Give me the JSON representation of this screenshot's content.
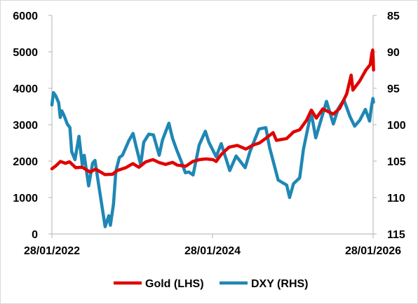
{
  "chart_data": {
    "type": "line",
    "title": "",
    "xlabel": "",
    "ylabel": "",
    "x_start": "2022-01-28",
    "x_end": "2026-01-28",
    "x_ticks": [
      "28/01/2022",
      "28/01/2024",
      "28/01/2026"
    ],
    "y_left": {
      "min": 0,
      "max": 6000,
      "ticks": [
        "0",
        "1000",
        "2000",
        "3000",
        "4000",
        "5000",
        "6000"
      ]
    },
    "y_right": {
      "min": 85,
      "max": 115,
      "inverted": true,
      "ticks": [
        "85",
        "90",
        "95",
        "100",
        "105",
        "110",
        "115"
      ]
    },
    "grid": false,
    "legend_position": "bottom",
    "series": [
      {
        "name": "Gold (LHS)",
        "axis": "left",
        "color": "#e00000",
        "points": [
          [
            "2022-01-28",
            1790
          ],
          [
            "2022-02-15",
            1870
          ],
          [
            "2022-03-08",
            1990
          ],
          [
            "2022-03-31",
            1940
          ],
          [
            "2022-04-18",
            1980
          ],
          [
            "2022-05-16",
            1820
          ],
          [
            "2022-06-15",
            1830
          ],
          [
            "2022-07-21",
            1700
          ],
          [
            "2022-08-15",
            1780
          ],
          [
            "2022-09-26",
            1630
          ],
          [
            "2022-10-31",
            1640
          ],
          [
            "2022-11-21",
            1740
          ],
          [
            "2022-12-30",
            1820
          ],
          [
            "2023-01-31",
            1930
          ],
          [
            "2023-02-28",
            1830
          ],
          [
            "2023-03-31",
            1980
          ],
          [
            "2023-05-03",
            2040
          ],
          [
            "2023-05-31",
            1960
          ],
          [
            "2023-06-29",
            1910
          ],
          [
            "2023-07-31",
            1965
          ],
          [
            "2023-08-21",
            1890
          ],
          [
            "2023-09-29",
            1860
          ],
          [
            "2023-10-31",
            1990
          ],
          [
            "2023-11-30",
            2040
          ],
          [
            "2023-12-29",
            2060
          ],
          [
            "2024-01-31",
            2040
          ],
          [
            "2024-02-14",
            1990
          ],
          [
            "2024-03-08",
            2180
          ],
          [
            "2024-04-12",
            2380
          ],
          [
            "2024-05-20",
            2430
          ],
          [
            "2024-06-28",
            2330
          ],
          [
            "2024-07-31",
            2440
          ],
          [
            "2024-08-30",
            2500
          ],
          [
            "2024-09-30",
            2640
          ],
          [
            "2024-10-30",
            2780
          ],
          [
            "2024-11-14",
            2570
          ],
          [
            "2024-12-31",
            2620
          ],
          [
            "2025-01-31",
            2800
          ],
          [
            "2025-02-28",
            2860
          ],
          [
            "2025-03-31",
            3120
          ],
          [
            "2025-04-22",
            3400
          ],
          [
            "2025-05-15",
            3180
          ],
          [
            "2025-06-13",
            3430
          ],
          [
            "2025-07-31",
            3290
          ],
          [
            "2025-08-29",
            3450
          ],
          [
            "2025-09-30",
            3850
          ],
          [
            "2025-10-20",
            4360
          ],
          [
            "2025-10-28",
            3950
          ],
          [
            "2025-11-28",
            4200
          ],
          [
            "2025-12-26",
            4500
          ],
          [
            "2026-01-15",
            4650
          ],
          [
            "2026-01-22",
            4950
          ],
          [
            "2026-01-26",
            5050
          ],
          [
            "2026-01-28",
            4850
          ],
          [
            "2026-01-30",
            4500
          ]
        ]
      },
      {
        "name": "DXY (RHS)",
        "axis": "right",
        "color": "#1f87b4",
        "points": [
          [
            "2022-01-28",
            97.3
          ],
          [
            "2022-02-04",
            95.6
          ],
          [
            "2022-02-14",
            96.0
          ],
          [
            "2022-02-28",
            97.0
          ],
          [
            "2022-03-07",
            99.0
          ],
          [
            "2022-03-14",
            98.1
          ],
          [
            "2022-03-25",
            98.8
          ],
          [
            "2022-04-08",
            99.9
          ],
          [
            "2022-04-20",
            100.4
          ],
          [
            "2022-04-28",
            103.7
          ],
          [
            "2022-05-13",
            104.8
          ],
          [
            "2022-05-31",
            101.6
          ],
          [
            "2022-06-15",
            105.5
          ],
          [
            "2022-06-24",
            104.2
          ],
          [
            "2022-07-14",
            108.4
          ],
          [
            "2022-08-01",
            105.3
          ],
          [
            "2022-08-12",
            104.9
          ],
          [
            "2022-08-31",
            108.7
          ],
          [
            "2022-09-27",
            114.0
          ],
          [
            "2022-10-14",
            112.5
          ],
          [
            "2022-10-21",
            113.8
          ],
          [
            "2022-11-04",
            110.9
          ],
          [
            "2022-11-15",
            106.4
          ],
          [
            "2022-12-01",
            104.5
          ],
          [
            "2022-12-15",
            104.2
          ],
          [
            "2023-01-13",
            102.2
          ],
          [
            "2023-02-01",
            101.2
          ],
          [
            "2023-02-15",
            103.0
          ],
          [
            "2023-03-08",
            105.5
          ],
          [
            "2023-03-22",
            102.4
          ],
          [
            "2023-04-14",
            101.3
          ],
          [
            "2023-05-05",
            101.4
          ],
          [
            "2023-05-31",
            104.2
          ],
          [
            "2023-06-15",
            102.1
          ],
          [
            "2023-07-14",
            99.8
          ],
          [
            "2023-07-31",
            101.9
          ],
          [
            "2023-08-18",
            103.4
          ],
          [
            "2023-09-08",
            105.0
          ],
          [
            "2023-09-27",
            106.6
          ],
          [
            "2023-10-13",
            106.5
          ],
          [
            "2023-11-01",
            106.9
          ],
          [
            "2023-11-29",
            102.8
          ],
          [
            "2023-12-27",
            100.9
          ],
          [
            "2024-01-12",
            102.4
          ],
          [
            "2024-02-14",
            104.4
          ],
          [
            "2024-03-08",
            102.6
          ],
          [
            "2024-04-16",
            106.3
          ],
          [
            "2024-05-15",
            104.3
          ],
          [
            "2024-06-25",
            105.9
          ],
          [
            "2024-07-17",
            103.7
          ],
          [
            "2024-08-27",
            100.6
          ],
          [
            "2024-09-27",
            100.4
          ],
          [
            "2024-10-14",
            103.1
          ],
          [
            "2024-11-22",
            107.6
          ],
          [
            "2024-12-31",
            108.3
          ],
          [
            "2025-01-13",
            110.0
          ],
          [
            "2025-01-31",
            108.1
          ],
          [
            "2025-02-28",
            107.3
          ],
          [
            "2025-03-17",
            103.4
          ],
          [
            "2025-04-21",
            98.3
          ],
          [
            "2025-05-12",
            101.8
          ],
          [
            "2025-06-30",
            96.8
          ],
          [
            "2025-07-31",
            99.9
          ],
          [
            "2025-08-22",
            97.8
          ],
          [
            "2025-09-17",
            96.6
          ],
          [
            "2025-10-15",
            98.9
          ],
          [
            "2025-11-05",
            100.2
          ],
          [
            "2025-11-28",
            99.4
          ],
          [
            "2025-12-24",
            97.9
          ],
          [
            "2026-01-12",
            99.5
          ],
          [
            "2026-01-20",
            97.6
          ],
          [
            "2026-01-27",
            96.4
          ],
          [
            "2026-01-30",
            96.9
          ]
        ]
      }
    ]
  }
}
